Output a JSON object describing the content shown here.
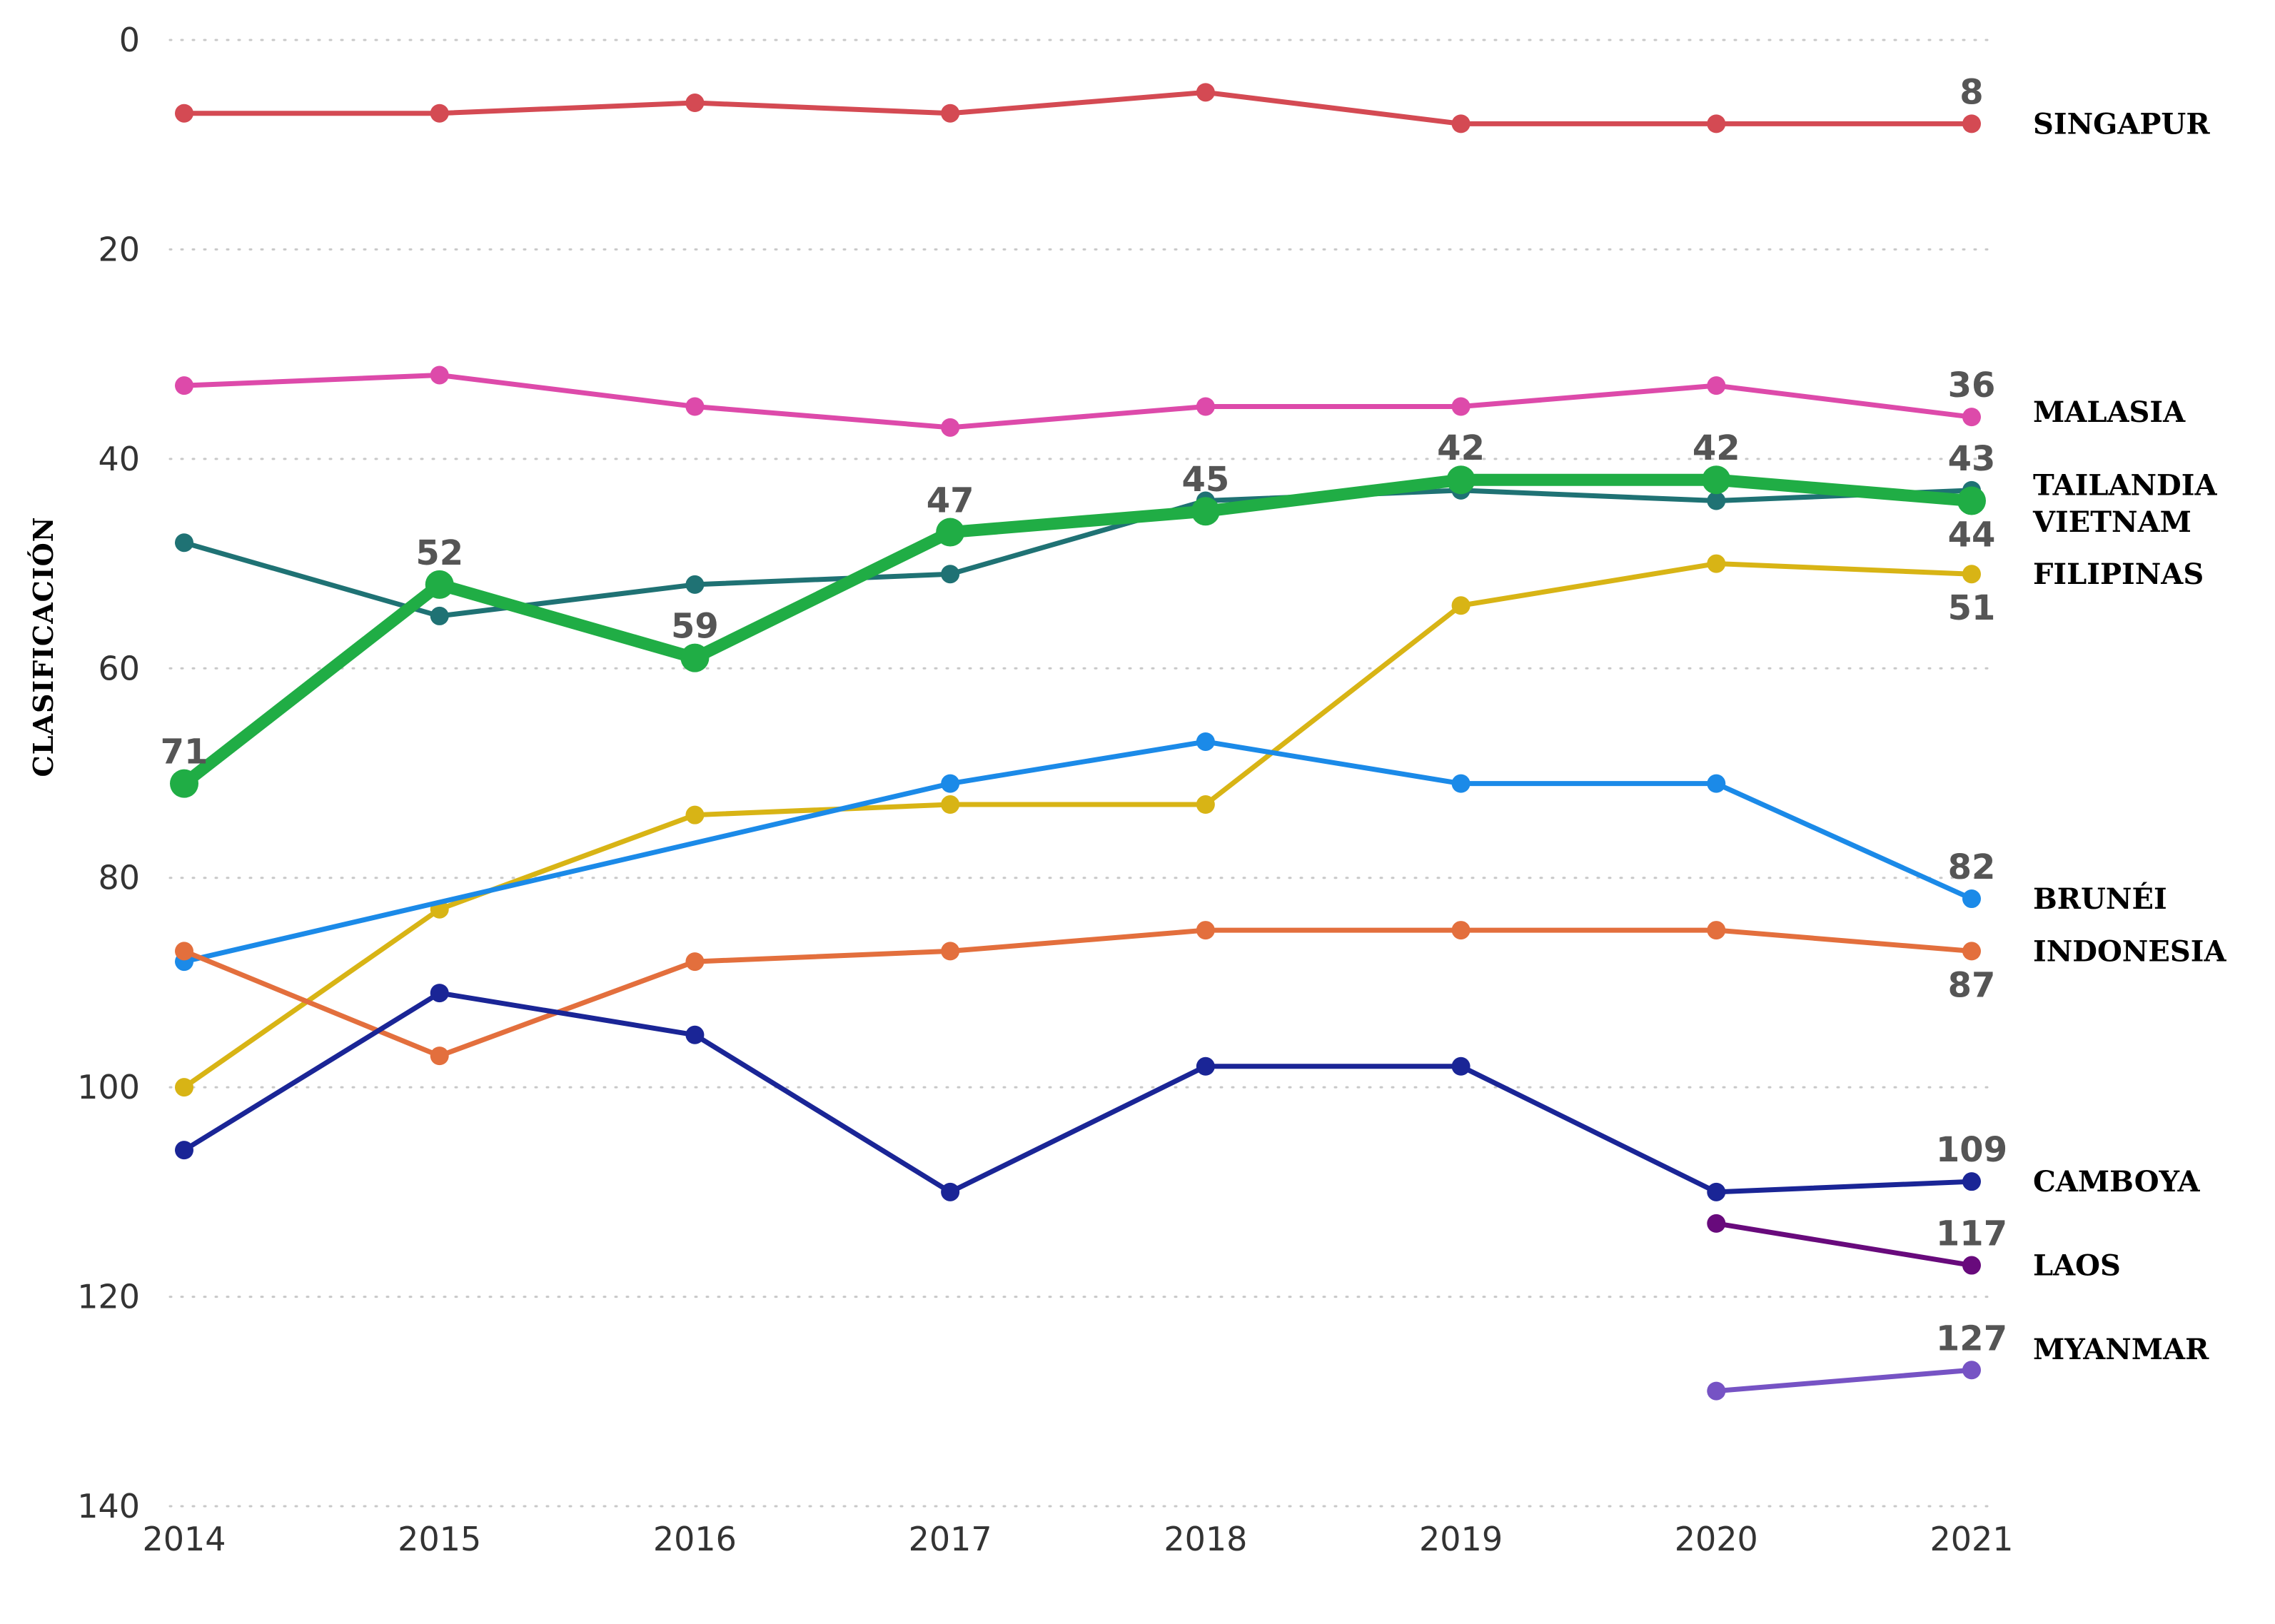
{
  "chart_data": {
    "type": "line",
    "title": "",
    "xlabel": "",
    "ylabel": "CLASIFICACIÓN",
    "y_inverted": true,
    "ylim": [
      0,
      140
    ],
    "yticks": [
      "0",
      "20",
      "40",
      "60",
      "80",
      "100",
      "120",
      "140"
    ],
    "grid": true,
    "legend": "labels at line ends (right)",
    "x": [
      "2014",
      "2015",
      "2016",
      "2017",
      "2018",
      "2019",
      "2020",
      "2021"
    ],
    "series": [
      {
        "name": "SINGAPUR",
        "color": "#d44a53",
        "values": [
          7,
          7,
          6,
          7,
          5,
          8,
          8,
          8
        ]
      },
      {
        "name": "MALASIA",
        "color": "#dd4aaa",
        "values": [
          33,
          32,
          35,
          37,
          35,
          35,
          33,
          36
        ]
      },
      {
        "name": "TAILANDIA",
        "color": "#1f7274",
        "values": [
          48,
          55,
          52,
          51,
          44,
          43,
          44,
          43
        ]
      },
      {
        "name": "VIETNAM",
        "color": "#20ad45",
        "highlight": true,
        "values": [
          71,
          52,
          59,
          47,
          45,
          42,
          42,
          44
        ]
      },
      {
        "name": "FILIPINAS",
        "color": "#d8b415",
        "values": [
          100,
          83,
          74,
          73,
          73,
          54,
          50,
          51
        ]
      },
      {
        "name": "BRUNÉI",
        "color": "#1b8ae8",
        "values": [
          88,
          null,
          null,
          71,
          67,
          71,
          71,
          82
        ]
      },
      {
        "name": "INDONESIA",
        "color": "#e36f3d",
        "values": [
          87,
          97,
          88,
          87,
          85,
          85,
          85,
          87
        ]
      },
      {
        "name": "CAMBOYA",
        "color": "#1a2596",
        "values": [
          106,
          91,
          95,
          110,
          98,
          98,
          110,
          109
        ]
      },
      {
        "name": "LAOS",
        "color": "#680a7c",
        "values": [
          null,
          null,
          null,
          null,
          null,
          null,
          113,
          117
        ]
      },
      {
        "name": "MYANMAR",
        "color": "#7653c4",
        "values": [
          null,
          null,
          null,
          null,
          null,
          null,
          129,
          127
        ]
      }
    ],
    "data_labels": [
      {
        "text": "71",
        "x": "2014",
        "y": 71,
        "pos": "above"
      },
      {
        "text": "52",
        "x": "2015",
        "y": 52,
        "pos": "above"
      },
      {
        "text": "59",
        "x": "2016",
        "y": 59,
        "pos": "above"
      },
      {
        "text": "47",
        "x": "2017",
        "y": 47,
        "pos": "above"
      },
      {
        "text": "45",
        "x": "2018",
        "y": 45,
        "pos": "above"
      },
      {
        "text": "42",
        "x": "2019",
        "y": 42,
        "pos": "above"
      },
      {
        "text": "42",
        "x": "2020",
        "y": 42,
        "pos": "above"
      },
      {
        "text": "8",
        "x": "2021",
        "y": 8,
        "pos": "above"
      },
      {
        "text": "36",
        "x": "2021",
        "y": 36,
        "pos": "above"
      },
      {
        "text": "43",
        "x": "2021",
        "y": 43,
        "pos": "above"
      },
      {
        "text": "44",
        "x": "2021",
        "y": 44,
        "pos": "below"
      },
      {
        "text": "51",
        "x": "2021",
        "y": 51,
        "pos": "below"
      },
      {
        "text": "82",
        "x": "2021",
        "y": 82,
        "pos": "above"
      },
      {
        "text": "87",
        "x": "2021",
        "y": 87,
        "pos": "below"
      },
      {
        "text": "109",
        "x": "2021",
        "y": 109,
        "pos": "above"
      },
      {
        "text": "117",
        "x": "2021",
        "y": 117,
        "pos": "above"
      },
      {
        "text": "127",
        "x": "2021",
        "y": 127,
        "pos": "above"
      }
    ],
    "end_labels": [
      {
        "text": "SINGAPUR",
        "y": 8
      },
      {
        "text": "MALASIA",
        "y": 35.5
      },
      {
        "text": "TAILANDIA",
        "y": 42.5
      },
      {
        "text": "VIETNAM",
        "y": 46
      },
      {
        "text": "FILIPINAS",
        "y": 51
      },
      {
        "text": "BRUNÉI",
        "y": 82
      },
      {
        "text": "INDONESIA",
        "y": 87
      },
      {
        "text": "CAMBOYA",
        "y": 109
      },
      {
        "text": "LAOS",
        "y": 117
      },
      {
        "text": "MYANMAR",
        "y": 125
      }
    ]
  }
}
